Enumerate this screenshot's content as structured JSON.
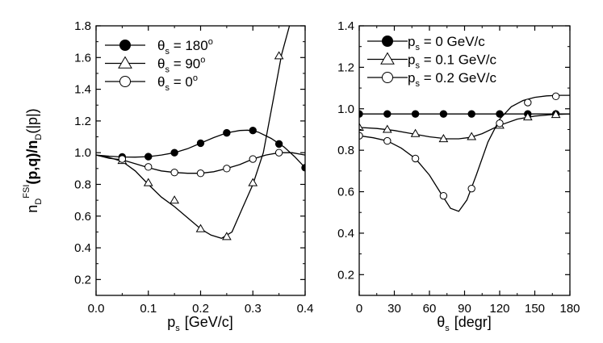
{
  "chart_data": [
    {
      "type": "line",
      "panel": "left",
      "xlabel": "p_s [GeV/c]",
      "xlabel_main": "p",
      "xlabel_sub": "s",
      "xlabel_unit": "[GeV/c]",
      "ylabel": "n_D^FSI(p,q)/n_D(|p|)",
      "ylabel_n": "n",
      "ylabel_D": "D",
      "ylabel_FSI": "FSI",
      "ylabel_rest": "(p,q)/n",
      "ylabel_D2": "D",
      "ylabel_tail": "(|p|)",
      "xlim": [
        0.0,
        0.4
      ],
      "ylim": [
        0.1,
        1.8
      ],
      "xticks": [
        0.0,
        0.1,
        0.2,
        0.3,
        0.4
      ],
      "xtick_labels": [
        "0.0",
        "0.1",
        "0.2",
        "0.3",
        "0.4"
      ],
      "yticks": [
        0.2,
        0.4,
        0.6,
        0.8,
        1.0,
        1.2,
        1.4,
        1.6,
        1.8
      ],
      "ytick_labels": [
        "0.2",
        "0.4",
        "0.6",
        "0.8",
        "1.0",
        "1.2",
        "1.4",
        "1.6",
        "1.8"
      ],
      "legend": [
        {
          "marker": "filled-circle",
          "symbol": "θ",
          "sub": "s",
          "text": " = 180",
          "sup": "o"
        },
        {
          "marker": "open-triangle",
          "symbol": "θ",
          "sub": "s",
          "text": " =  90",
          "sup": "o"
        },
        {
          "marker": "open-circle",
          "symbol": "θ",
          "sub": "s",
          "text": " =   0",
          "sup": "o"
        }
      ],
      "series": [
        {
          "name": "θs = 180°",
          "marker": "filled-circle",
          "curve": [
            [
              0.0,
              0.985
            ],
            [
              0.025,
              0.978
            ],
            [
              0.05,
              0.973
            ],
            [
              0.075,
              0.972
            ],
            [
              0.1,
              0.975
            ],
            [
              0.125,
              0.985
            ],
            [
              0.15,
              1.0
            ],
            [
              0.175,
              1.025
            ],
            [
              0.2,
              1.06
            ],
            [
              0.225,
              1.095
            ],
            [
              0.25,
              1.125
            ],
            [
              0.275,
              1.14
            ],
            [
              0.29,
              1.142
            ],
            [
              0.31,
              1.13
            ],
            [
              0.335,
              1.09
            ],
            [
              0.36,
              1.035
            ],
            [
              0.38,
              0.975
            ],
            [
              0.4,
              0.905
            ]
          ],
          "points": [
            [
              0.05,
              0.973
            ],
            [
              0.1,
              0.975
            ],
            [
              0.15,
              1.0
            ],
            [
              0.2,
              1.06
            ],
            [
              0.25,
              1.125
            ],
            [
              0.3,
              1.14
            ],
            [
              0.35,
              1.055
            ],
            [
              0.4,
              0.905
            ]
          ]
        },
        {
          "name": "θs = 90°",
          "marker": "open-triangle",
          "curve": [
            [
              0.0,
              0.985
            ],
            [
              0.025,
              0.97
            ],
            [
              0.05,
              0.945
            ],
            [
              0.075,
              0.885
            ],
            [
              0.1,
              0.8
            ],
            [
              0.125,
              0.72
            ],
            [
              0.15,
              0.66
            ],
            [
              0.175,
              0.59
            ],
            [
              0.2,
              0.52
            ],
            [
              0.22,
              0.48
            ],
            [
              0.24,
              0.46
            ],
            [
              0.26,
              0.5
            ],
            [
              0.28,
              0.65
            ],
            [
              0.3,
              0.8
            ],
            [
              0.32,
              1.0
            ],
            [
              0.34,
              1.35
            ],
            [
              0.355,
              1.62
            ],
            [
              0.37,
              1.8
            ]
          ],
          "points": [
            [
              0.05,
              0.95
            ],
            [
              0.1,
              0.81
            ],
            [
              0.15,
              0.7
            ],
            [
              0.2,
              0.52
            ],
            [
              0.25,
              0.47
            ],
            [
              0.3,
              0.81
            ],
            [
              0.35,
              1.61
            ]
          ]
        },
        {
          "name": "θs = 0°",
          "marker": "open-circle",
          "curve": [
            [
              0.0,
              0.985
            ],
            [
              0.025,
              0.965
            ],
            [
              0.05,
              0.955
            ],
            [
              0.075,
              0.93
            ],
            [
              0.1,
              0.905
            ],
            [
              0.125,
              0.885
            ],
            [
              0.15,
              0.875
            ],
            [
              0.175,
              0.87
            ],
            [
              0.2,
              0.87
            ],
            [
              0.225,
              0.88
            ],
            [
              0.25,
              0.9
            ],
            [
              0.275,
              0.925
            ],
            [
              0.3,
              0.96
            ],
            [
              0.325,
              0.985
            ],
            [
              0.35,
              1.0
            ],
            [
              0.375,
              1.0
            ],
            [
              0.4,
              0.985
            ]
          ],
          "points": [
            [
              0.05,
              0.96
            ],
            [
              0.1,
              0.91
            ],
            [
              0.15,
              0.875
            ],
            [
              0.2,
              0.87
            ],
            [
              0.25,
              0.9
            ],
            [
              0.3,
              0.96
            ],
            [
              0.35,
              1.0
            ]
          ]
        }
      ]
    },
    {
      "type": "line",
      "panel": "right",
      "xlabel": "θs [degr]",
      "xlabel_main": "θ",
      "xlabel_sub": "s",
      "xlabel_unit": "[degr]",
      "xlim": [
        0,
        180
      ],
      "ylim": [
        0.1,
        1.4
      ],
      "xticks": [
        0,
        30,
        60,
        90,
        120,
        150,
        180
      ],
      "xtick_labels": [
        "0",
        "30",
        "60",
        "90",
        "120",
        "150",
        "180"
      ],
      "yticks": [
        0.2,
        0.4,
        0.6,
        0.8,
        1.0,
        1.2,
        1.4
      ],
      "ytick_labels": [
        "0.2",
        "0.4",
        "0.6",
        "0.8",
        "1.0",
        "1.2",
        "1.4"
      ],
      "legend": [
        {
          "marker": "filled-circle",
          "symbol": "p",
          "sub": "s",
          "text": " = 0   GeV/c"
        },
        {
          "marker": "open-triangle",
          "symbol": "p",
          "sub": "s",
          "text": " = 0.1 GeV/c"
        },
        {
          "marker": "open-circle",
          "symbol": "p",
          "sub": "s",
          "text": " = 0.2 GeV/c"
        }
      ],
      "series": [
        {
          "name": "ps = 0 GeV/c",
          "marker": "filled-circle",
          "curve": [
            [
              0,
              0.975
            ],
            [
              180,
              0.975
            ]
          ],
          "points": [
            [
              0,
              0.975
            ],
            [
              24,
              0.975
            ],
            [
              48,
              0.975
            ],
            [
              72,
              0.975
            ],
            [
              96,
              0.975
            ],
            [
              120,
              0.975
            ],
            [
              144,
              0.975
            ],
            [
              168,
              0.975
            ]
          ]
        },
        {
          "name": "ps = 0.1 GeV/c",
          "marker": "open-triangle",
          "curve": [
            [
              0,
              0.91
            ],
            [
              15,
              0.905
            ],
            [
              30,
              0.895
            ],
            [
              45,
              0.88
            ],
            [
              60,
              0.865
            ],
            [
              75,
              0.855
            ],
            [
              85,
              0.855
            ],
            [
              95,
              0.862
            ],
            [
              105,
              0.88
            ],
            [
              120,
              0.92
            ],
            [
              135,
              0.95
            ],
            [
              150,
              0.965
            ],
            [
              165,
              0.972
            ],
            [
              180,
              0.975
            ]
          ],
          "points": [
            [
              0,
              0.91
            ],
            [
              24,
              0.9
            ],
            [
              48,
              0.88
            ],
            [
              72,
              0.855
            ],
            [
              96,
              0.865
            ],
            [
              120,
              0.92
            ],
            [
              144,
              0.96
            ],
            [
              168,
              0.972
            ]
          ]
        },
        {
          "name": "ps = 0.2 GeV/c",
          "marker": "open-circle",
          "curve": [
            [
              0,
              0.87
            ],
            [
              12,
              0.86
            ],
            [
              24,
              0.845
            ],
            [
              36,
              0.81
            ],
            [
              48,
              0.76
            ],
            [
              60,
              0.68
            ],
            [
              70,
              0.59
            ],
            [
              78,
              0.52
            ],
            [
              85,
              0.505
            ],
            [
              92,
              0.56
            ],
            [
              100,
              0.68
            ],
            [
              110,
              0.84
            ],
            [
              120,
              0.95
            ],
            [
              130,
              1.01
            ],
            [
              140,
              1.04
            ],
            [
              150,
              1.055
            ],
            [
              160,
              1.062
            ],
            [
              170,
              1.065
            ],
            [
              180,
              1.065
            ]
          ],
          "points": [
            [
              0,
              0.87
            ],
            [
              24,
              0.845
            ],
            [
              48,
              0.76
            ],
            [
              72,
              0.58
            ],
            [
              96,
              0.615
            ],
            [
              120,
              0.93
            ],
            [
              144,
              1.03
            ],
            [
              168,
              1.06
            ]
          ]
        }
      ]
    }
  ]
}
